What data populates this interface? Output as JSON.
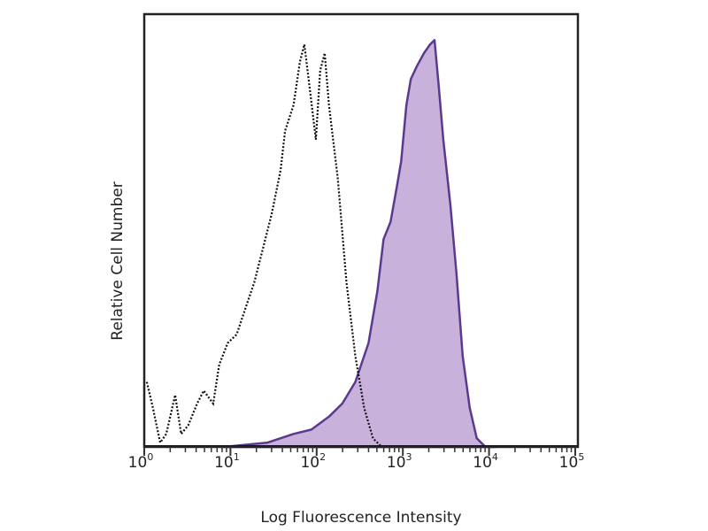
{
  "chart_data": {
    "type": "area",
    "title": "",
    "xlabel": "Log Fluorescence Intensity",
    "ylabel": "Relative Cell Number",
    "x_scale": "log",
    "xlim": [
      1,
      100000
    ],
    "ylim": [
      0,
      100
    ],
    "x_tick_labels": [
      {
        "base": "10",
        "exp": "0"
      },
      {
        "base": "10",
        "exp": "1"
      },
      {
        "base": "10",
        "exp": "2"
      },
      {
        "base": "10",
        "exp": "3"
      },
      {
        "base": "10",
        "exp": "4"
      },
      {
        "base": "10",
        "exp": "5"
      }
    ],
    "grid": false,
    "legend": "none",
    "series": [
      {
        "style": "dotted-line",
        "color": "#111111",
        "x": [
          1.07,
          1.26,
          1.53,
          1.8,
          2.28,
          2.68,
          3.24,
          4.1,
          4.9,
          6.3,
          7.4,
          9.3,
          11.8,
          14.9,
          18.9,
          23.9,
          30.2,
          38.2,
          43,
          54,
          64,
          72,
          83,
          98,
          110,
          124,
          139,
          176,
          222,
          281,
          356,
          450,
          569
        ],
        "y": [
          15,
          9,
          1,
          3,
          12,
          3,
          5,
          10,
          13,
          10,
          19,
          24,
          26,
          32,
          38,
          46,
          54,
          64,
          73,
          79,
          89,
          93,
          83,
          71,
          87,
          91,
          79,
          62,
          38,
          21,
          9,
          2,
          0
        ]
      },
      {
        "style": "filled",
        "color": "#5b3a8e",
        "fill": "#c8b2dc",
        "x": [
          8.3,
          27,
          54,
          87,
          139,
          198,
          281,
          400,
          506,
          597,
          720,
          849,
          955,
          1099,
          1236,
          1456,
          1758,
          2070,
          2330,
          2620,
          2946,
          3557,
          4190,
          4940,
          5970,
          7200,
          9100,
          12070
        ],
        "y": [
          0,
          1,
          3,
          4,
          7,
          10,
          15,
          24,
          36,
          48,
          52,
          60,
          66,
          79,
          85,
          88,
          91,
          93,
          94,
          83,
          71,
          56,
          40,
          21,
          9,
          2,
          0,
          0
        ]
      }
    ]
  }
}
